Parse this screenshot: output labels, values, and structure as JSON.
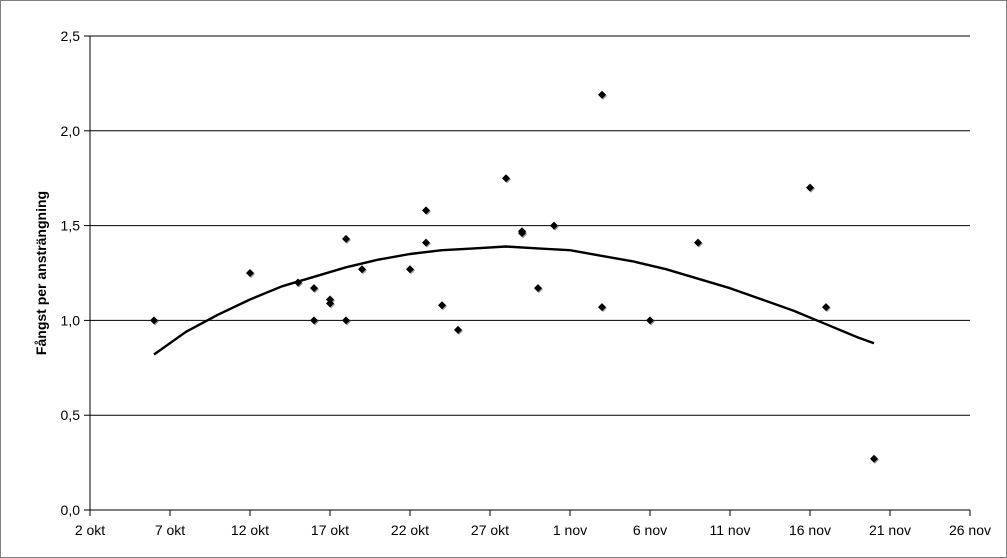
{
  "chart_data": {
    "type": "scatter",
    "title": "",
    "xlabel": "",
    "ylabel": "Fångst per ansträngning",
    "xlim": [
      0,
      55
    ],
    "ylim": [
      0,
      2.5
    ],
    "x_ticks": [
      0,
      5,
      10,
      15,
      20,
      25,
      30,
      35,
      40,
      45,
      50,
      55
    ],
    "x_tick_labels": [
      "2 okt",
      "7 okt",
      "12 okt",
      "17 okt",
      "22 okt",
      "27 okt",
      "1 nov",
      "6 nov",
      "11 nov",
      "16 nov",
      "21 nov",
      "26 nov"
    ],
    "y_ticks": [
      0,
      0.5,
      1.0,
      1.5,
      2.0,
      2.5
    ],
    "y_tick_labels": [
      "0,0",
      "0,5",
      "1,0",
      "1,5",
      "2,0",
      "2,5"
    ],
    "grid": "horizontal",
    "legend": "none",
    "points": [
      {
        "x": 4,
        "y": 1.0
      },
      {
        "x": 10,
        "y": 1.25
      },
      {
        "x": 13,
        "y": 1.2
      },
      {
        "x": 14,
        "y": 1.17
      },
      {
        "x": 14,
        "y": 1.0
      },
      {
        "x": 15,
        "y": 1.11
      },
      {
        "x": 15,
        "y": 1.09
      },
      {
        "x": 16,
        "y": 1.43
      },
      {
        "x": 16,
        "y": 1.0
      },
      {
        "x": 17,
        "y": 1.27
      },
      {
        "x": 20,
        "y": 1.27
      },
      {
        "x": 21,
        "y": 1.58
      },
      {
        "x": 21,
        "y": 1.41
      },
      {
        "x": 22,
        "y": 1.08
      },
      {
        "x": 23,
        "y": 0.95
      },
      {
        "x": 26,
        "y": 1.75
      },
      {
        "x": 27,
        "y": 1.47
      },
      {
        "x": 27,
        "y": 1.46
      },
      {
        "x": 28,
        "y": 1.17
      },
      {
        "x": 29,
        "y": 1.5
      },
      {
        "x": 32,
        "y": 2.19
      },
      {
        "x": 32,
        "y": 1.07
      },
      {
        "x": 35,
        "y": 1.0
      },
      {
        "x": 38,
        "y": 1.41
      },
      {
        "x": 45,
        "y": 1.7
      },
      {
        "x": 46,
        "y": 1.07
      },
      {
        "x": 49,
        "y": 0.27
      }
    ],
    "trendline": {
      "type": "polynomial-2",
      "x": [
        4,
        6,
        8,
        10,
        12,
        14,
        16,
        18,
        20,
        22,
        24,
        26,
        28,
        30,
        32,
        34,
        36,
        38,
        40,
        42,
        44,
        46,
        48,
        49
      ],
      "y": [
        0.82,
        0.94,
        1.03,
        1.11,
        1.18,
        1.23,
        1.28,
        1.32,
        1.35,
        1.37,
        1.38,
        1.39,
        1.38,
        1.37,
        1.34,
        1.31,
        1.27,
        1.22,
        1.17,
        1.11,
        1.05,
        0.98,
        0.91,
        0.88
      ]
    },
    "colors": {
      "marker": "#000000",
      "marker_shadow": "#9a9a9a",
      "trendline": "#000000",
      "gridline": "#000000",
      "frame": "#808080"
    }
  }
}
